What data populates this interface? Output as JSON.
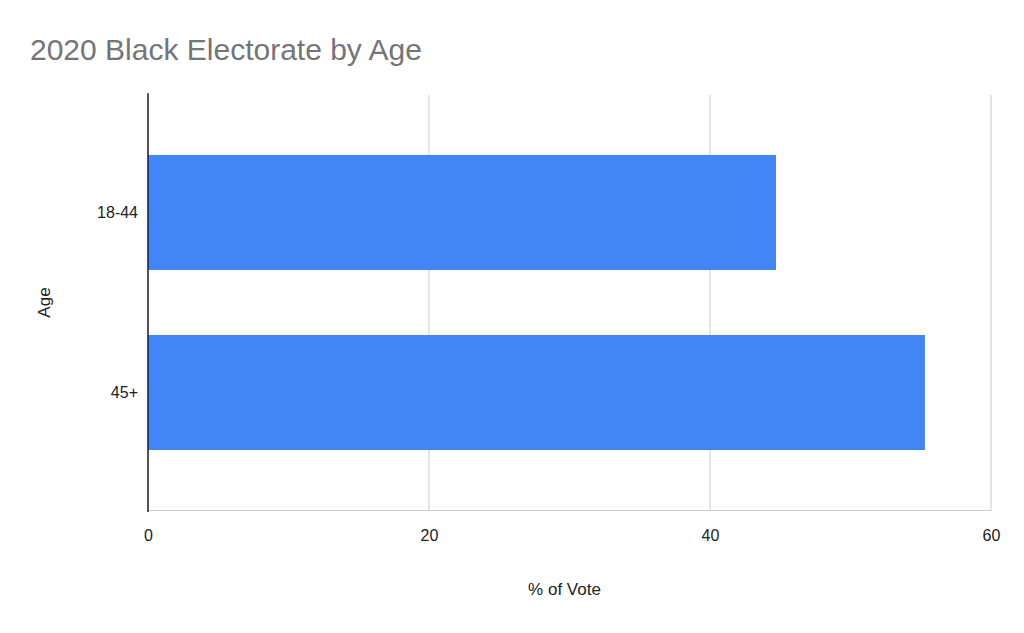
{
  "chart_data": {
    "type": "bar",
    "orientation": "horizontal",
    "title": "2020 Black Electorate by Age",
    "categories": [
      "18-44",
      "45+"
    ],
    "values": [
      44.7,
      55.3
    ],
    "color": "#4285f4",
    "xlabel": "% of Vote",
    "ylabel": "Age",
    "xlim": [
      0,
      60
    ],
    "xticks": [
      0,
      20,
      40,
      60
    ],
    "grid": true
  }
}
